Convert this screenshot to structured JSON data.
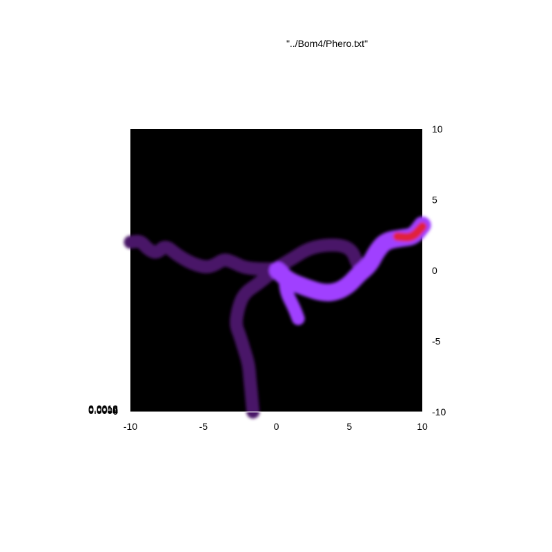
{
  "chart_data": {
    "type": "heatmap",
    "title": "\"../Bom4/Phero.txt\"",
    "xlabel": "",
    "ylabel": "",
    "xlim": [
      -10,
      10
    ],
    "ylim": [
      -10,
      10
    ],
    "x_ticks": [
      "-10",
      "-5",
      "0",
      "5",
      "10"
    ],
    "y_ticks": [
      "10",
      "5",
      "0",
      "-5",
      "-10"
    ],
    "z_tick_labels": [
      "0",
      "0.0004",
      "0.0008",
      "0.0012",
      "0.0016",
      "0.0018"
    ],
    "grid": false,
    "background_color": "#000000",
    "colors": {
      "low": "#4a1468",
      "mid": "#8b2cf0",
      "high": "#a040ff",
      "peak": "#e0203a"
    },
    "trails": [
      {
        "name": "left-branch",
        "width": 1.8,
        "intensity": "low",
        "points": [
          [
            -10,
            2.0
          ],
          [
            -9.3,
            2.1
          ],
          [
            -8.8,
            1.5
          ],
          [
            -8.2,
            1.2
          ],
          [
            -7.6,
            1.8
          ],
          [
            -6.8,
            1.1
          ],
          [
            -5.8,
            0.5
          ],
          [
            -4.8,
            0.2
          ],
          [
            -4.2,
            0.4
          ],
          [
            -3.6,
            0.8
          ],
          [
            -3.0,
            0.6
          ],
          [
            -2.2,
            0.2
          ],
          [
            -1.2,
            0.1
          ],
          [
            0,
            0.1
          ]
        ]
      },
      {
        "name": "lower-branch",
        "width": 1.8,
        "intensity": "low",
        "points": [
          [
            0.1,
            0.2
          ],
          [
            -1.2,
            -0.9
          ],
          [
            -2.2,
            -1.6
          ],
          [
            -2.6,
            -2.6
          ],
          [
            -2.8,
            -3.8
          ],
          [
            -2.5,
            -4.6
          ],
          [
            -2.2,
            -5.6
          ],
          [
            -1.9,
            -6.6
          ],
          [
            -1.8,
            -7.8
          ],
          [
            -1.7,
            -8.8
          ],
          [
            -1.6,
            -10
          ]
        ]
      },
      {
        "name": "upper-loop",
        "width": 1.8,
        "intensity": "low",
        "points": [
          [
            0.2,
            0.3
          ],
          [
            1.2,
            0.9
          ],
          [
            2.1,
            1.5
          ],
          [
            3.2,
            1.8
          ],
          [
            4.5,
            1.8
          ],
          [
            5.2,
            1.4
          ],
          [
            5.5,
            0.6
          ]
        ]
      },
      {
        "name": "main-trail",
        "width": 2.4,
        "intensity": "high",
        "points": [
          [
            0.1,
            0.0
          ],
          [
            0.8,
            -0.7
          ],
          [
            2.0,
            -1.2
          ],
          [
            3.2,
            -1.6
          ],
          [
            4.2,
            -1.5
          ],
          [
            5.0,
            -1.0
          ],
          [
            5.6,
            -0.3
          ],
          [
            6.4,
            0.4
          ],
          [
            6.9,
            1.4
          ],
          [
            7.5,
            2.1
          ],
          [
            8.6,
            2.3
          ],
          [
            9.4,
            2.4
          ],
          [
            10,
            3.2
          ]
        ]
      },
      {
        "name": "short-spur",
        "width": 1.8,
        "intensity": "high",
        "points": [
          [
            0.6,
            -0.7
          ],
          [
            0.7,
            -1.6
          ],
          [
            1.2,
            -2.6
          ],
          [
            1.5,
            -3.4
          ]
        ]
      },
      {
        "name": "red-tip",
        "width": 1.2,
        "intensity": "peak",
        "points": [
          [
            8.3,
            2.4
          ],
          [
            9.3,
            2.3
          ],
          [
            10,
            3.1
          ]
        ]
      }
    ]
  }
}
